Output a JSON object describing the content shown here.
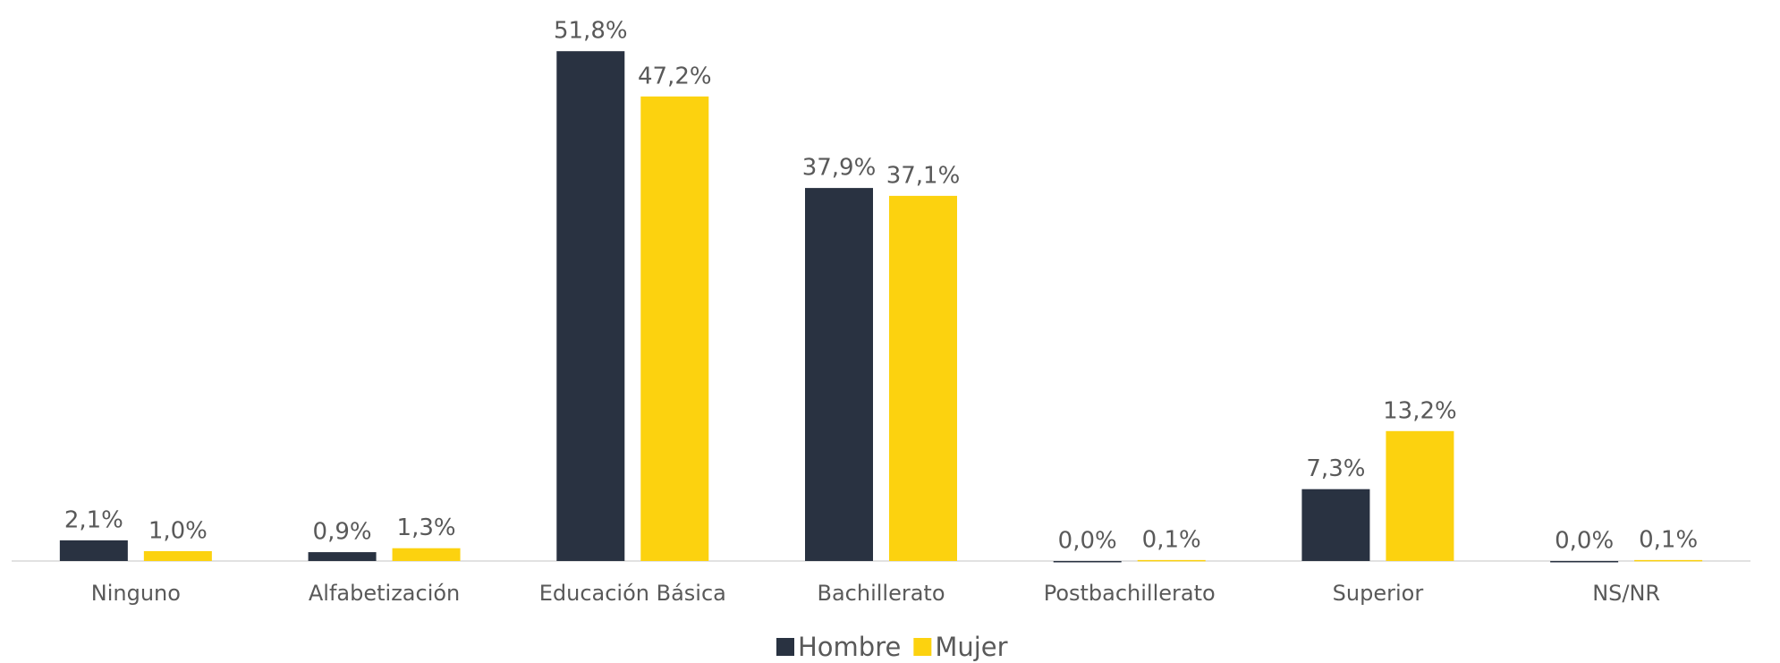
{
  "chart_data": {
    "type": "bar",
    "categories": [
      "Ninguno",
      "Alfabetización",
      "Educación Básica",
      "Bachillerato",
      "Postbachillerato",
      "Superior",
      "NS/NR"
    ],
    "series": [
      {
        "name": "Hombre",
        "color": "#293241",
        "values": [
          2.1,
          0.9,
          51.8,
          37.9,
          0.0,
          7.3,
          0.0
        ],
        "value_labels": [
          "2,1%",
          "0,9%",
          "51,8%",
          "37,9%",
          "0,0%",
          "7,3%",
          "0,0%"
        ]
      },
      {
        "name": "Mujer",
        "color": "#fcd20f",
        "values": [
          1.0,
          1.3,
          47.2,
          37.1,
          0.1,
          13.2,
          0.1
        ],
        "value_labels": [
          "1,0%",
          "1,3%",
          "47,2%",
          "37,1%",
          "0,1%",
          "13,2%",
          "0,1%"
        ]
      }
    ],
    "ylim": [
      0,
      57
    ],
    "legend": "bottom"
  }
}
